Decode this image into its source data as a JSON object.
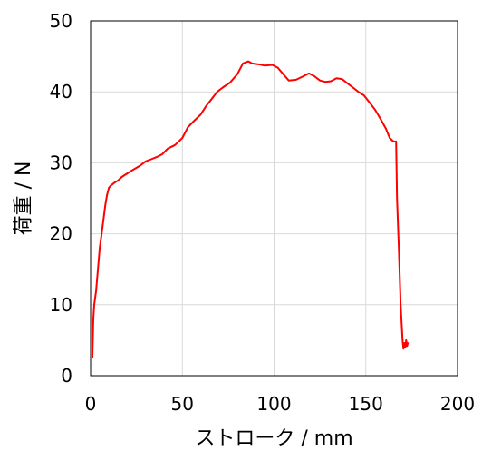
{
  "chart_data": {
    "type": "line",
    "title": "",
    "xlabel": "ストローク / mm",
    "ylabel": "荷重 / N",
    "xlim": [
      0,
      200
    ],
    "ylim": [
      0,
      50
    ],
    "x_ticks": [
      0,
      50,
      100,
      150,
      200
    ],
    "y_ticks": [
      0,
      10,
      20,
      30,
      40,
      50
    ],
    "grid": true,
    "legend": "none",
    "series": [
      {
        "color": "#ff0000",
        "points": [
          [
            1,
            2.5
          ],
          [
            1.5,
            8
          ],
          [
            2,
            10
          ],
          [
            3,
            12
          ],
          [
            4,
            15
          ],
          [
            5,
            18
          ],
          [
            6,
            20
          ],
          [
            7,
            22
          ],
          [
            8,
            24
          ],
          [
            9,
            25.5
          ],
          [
            10,
            26.5
          ],
          [
            11,
            26.8
          ],
          [
            12,
            27
          ],
          [
            13,
            27.2
          ],
          [
            15,
            27.5
          ],
          [
            17,
            28
          ],
          [
            20,
            28.5
          ],
          [
            23,
            29
          ],
          [
            27,
            29.6
          ],
          [
            30,
            30.2
          ],
          [
            33,
            30.5
          ],
          [
            36,
            30.8
          ],
          [
            39,
            31.2
          ],
          [
            42,
            32
          ],
          [
            46,
            32.5
          ],
          [
            50,
            33.5
          ],
          [
            53,
            35
          ],
          [
            56,
            35.8
          ],
          [
            60,
            36.8
          ],
          [
            63,
            38
          ],
          [
            66,
            39
          ],
          [
            69,
            40
          ],
          [
            72,
            40.6
          ],
          [
            76,
            41.3
          ],
          [
            80,
            42.5
          ],
          [
            83,
            44
          ],
          [
            86,
            44.3
          ],
          [
            88,
            44
          ],
          [
            91,
            43.9
          ],
          [
            95,
            43.7
          ],
          [
            99,
            43.8
          ],
          [
            102,
            43.4
          ],
          [
            105,
            42.5
          ],
          [
            108,
            41.6
          ],
          [
            112,
            41.7
          ],
          [
            116,
            42.2
          ],
          [
            119,
            42.6
          ],
          [
            122,
            42.2
          ],
          [
            125,
            41.6
          ],
          [
            128,
            41.4
          ],
          [
            131,
            41.5
          ],
          [
            134,
            41.9
          ],
          [
            137,
            41.8
          ],
          [
            140,
            41.2
          ],
          [
            143,
            40.6
          ],
          [
            146,
            40
          ],
          [
            149,
            39.5
          ],
          [
            152,
            38.5
          ],
          [
            155,
            37.5
          ],
          [
            158,
            36.2
          ],
          [
            161,
            34.8
          ],
          [
            163,
            33.5
          ],
          [
            165,
            33
          ],
          [
            166.5,
            33
          ],
          [
            167,
            25
          ],
          [
            168,
            18
          ],
          [
            169,
            10
          ],
          [
            170,
            5
          ],
          [
            170.5,
            3.8
          ],
          [
            171,
            4.6
          ],
          [
            171.5,
            4.0
          ],
          [
            172,
            5.0
          ],
          [
            172.5,
            4.2
          ],
          [
            173,
            4.7
          ]
        ]
      }
    ]
  }
}
